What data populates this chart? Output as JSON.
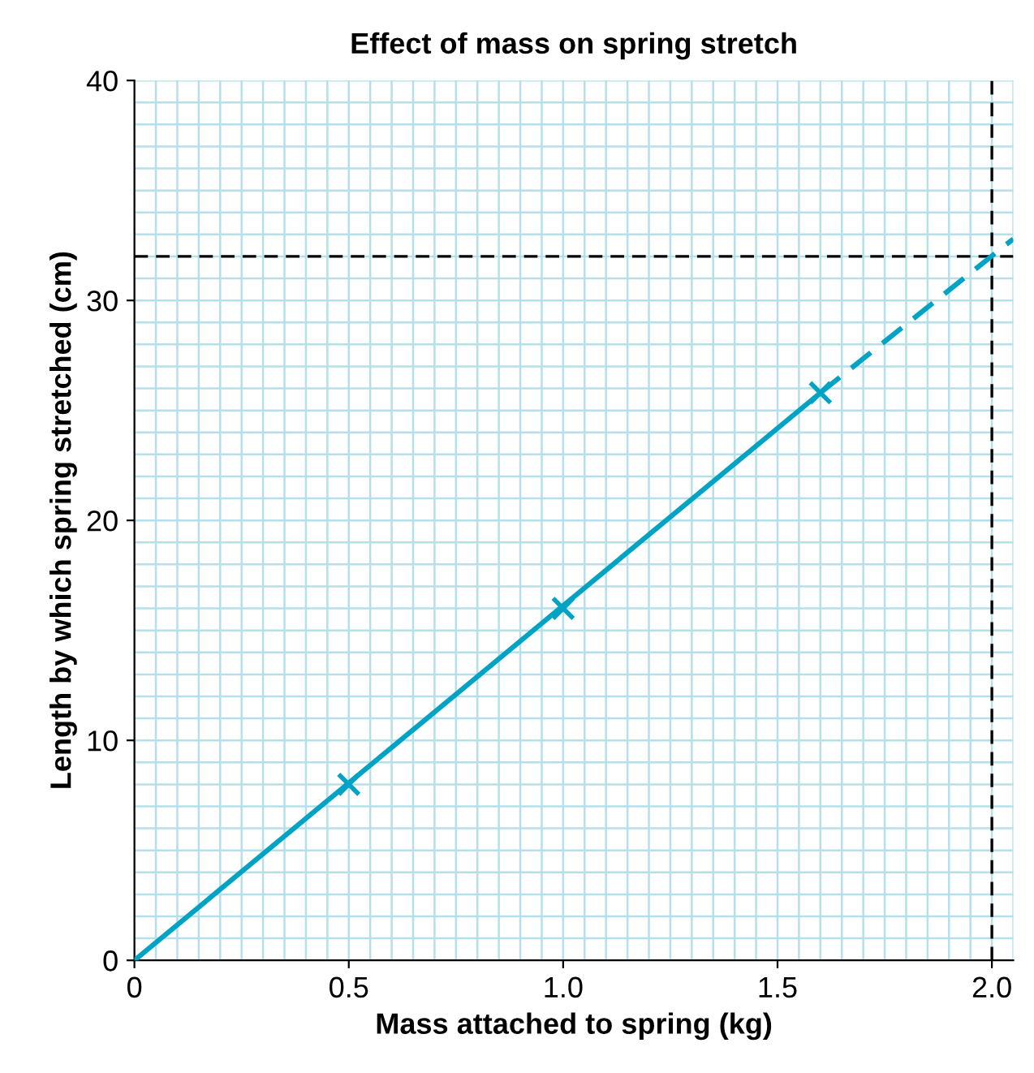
{
  "chart_data": {
    "type": "line",
    "title": "Effect of mass on spring stretch",
    "xlabel": "Mass attached to spring (kg)",
    "ylabel": "Length by which spring stretched (cm)",
    "xlim": [
      0,
      2.05
    ],
    "ylim": [
      0,
      40
    ],
    "xticks": [
      0,
      {
        "value": 0.5,
        "label": "0.5"
      },
      {
        "value": 1.0,
        "label": "1.0"
      },
      {
        "value": 1.5,
        "label": "1.5"
      },
      {
        "value": 2.0,
        "label": "2.0"
      }
    ],
    "yticks": [
      0,
      10,
      20,
      30,
      40
    ],
    "grid": true,
    "series": [
      {
        "color": "#00a3c4",
        "line_style": "solid",
        "marker": "none",
        "x": [
          0,
          1.6
        ],
        "values": [
          0,
          25.8
        ]
      },
      {
        "color": "#00a3c4",
        "line_style": "dashed",
        "marker": "none",
        "x": [
          1.6,
          2.05
        ],
        "values": [
          25.8,
          32.8
        ]
      },
      {
        "type": "scatter",
        "color": "#00a3c4",
        "marker": "cross",
        "x": [
          0.5,
          1.0,
          1.6
        ],
        "values": [
          8,
          16,
          25.8
        ]
      }
    ],
    "ref_lines": [
      {
        "axis": "y",
        "value": 32,
        "color": "#000000",
        "line_style": "dashed"
      },
      {
        "axis": "x",
        "value": 2.0,
        "color": "#000000",
        "line_style": "dashed"
      }
    ]
  }
}
